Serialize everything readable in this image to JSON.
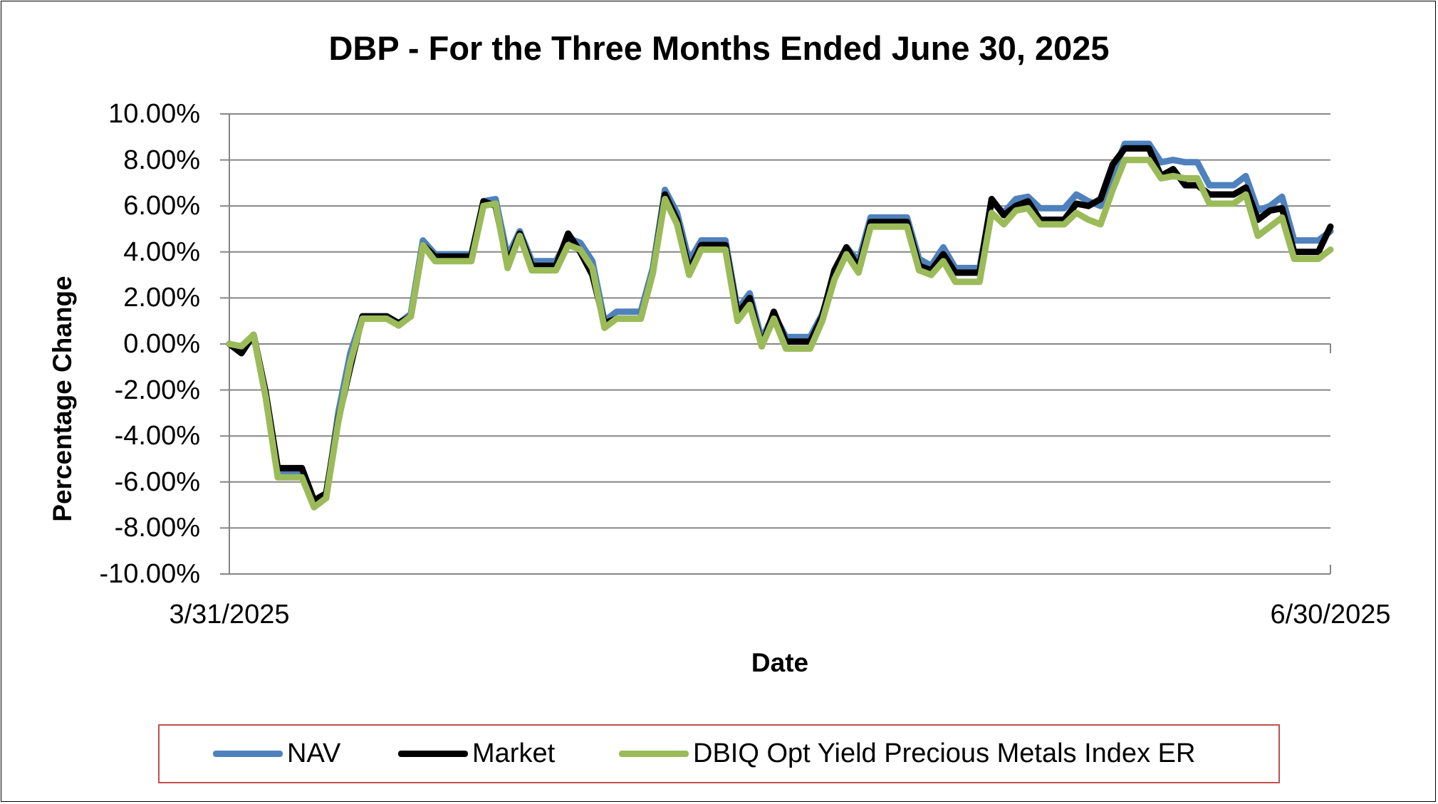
{
  "chart_data": {
    "type": "line",
    "title": "DBP - For the Three Months Ended June 30, 2025",
    "xlabel": "Date",
    "ylabel": "Percentage Change",
    "ylim": [
      -10,
      10
    ],
    "yticks": [
      "10.00%",
      "8.00%",
      "6.00%",
      "4.00%",
      "2.00%",
      "0.00%",
      "-2.00%",
      "-4.00%",
      "-6.00%",
      "-8.00%",
      "-10.00%"
    ],
    "xtick_labels": [
      "3/31/2025",
      "6/30/2025"
    ],
    "x_start": "3/31/2025",
    "x_end": "6/30/2025",
    "grid": true,
    "legend_position": "bottom",
    "series": [
      {
        "name": "NAV",
        "color": "#4f81bd",
        "values": [
          0.0,
          -0.2,
          0.4,
          -2.3,
          -5.6,
          -5.6,
          -5.6,
          -6.9,
          -6.7,
          -3.0,
          -0.4,
          1.2,
          1.2,
          1.2,
          0.9,
          1.3,
          4.5,
          3.9,
          3.9,
          3.9,
          3.9,
          6.2,
          6.3,
          3.8,
          4.9,
          3.6,
          3.6,
          3.6,
          4.6,
          4.4,
          3.6,
          1.0,
          1.4,
          1.4,
          1.4,
          3.3,
          6.7,
          5.7,
          3.6,
          4.5,
          4.5,
          4.5,
          1.5,
          2.2,
          0.2,
          1.3,
          0.3,
          0.3,
          0.3,
          1.3,
          3.0,
          4.2,
          3.6,
          5.5,
          5.5,
          5.5,
          5.5,
          3.7,
          3.4,
          4.2,
          3.3,
          3.3,
          3.3,
          6.2,
          5.7,
          6.3,
          6.4,
          5.9,
          5.9,
          5.9,
          6.5,
          6.2,
          6.0,
          7.3,
          8.7,
          8.7,
          8.7,
          7.9,
          8.0,
          7.9,
          7.9,
          6.9,
          6.9,
          6.9,
          7.3,
          5.8,
          6.0,
          6.4,
          4.5,
          4.5,
          4.5,
          4.9
        ]
      },
      {
        "name": "Market",
        "color": "#000000",
        "values": [
          0.0,
          -0.4,
          0.4,
          -2.1,
          -5.4,
          -5.4,
          -5.4,
          -6.8,
          -6.5,
          -3.3,
          -1.0,
          1.2,
          1.2,
          1.2,
          0.9,
          1.2,
          4.3,
          3.8,
          3.8,
          3.8,
          3.8,
          6.2,
          6.0,
          3.5,
          4.8,
          3.4,
          3.4,
          3.4,
          4.8,
          4.0,
          3.0,
          0.9,
          1.1,
          1.1,
          1.1,
          3.1,
          6.5,
          5.4,
          3.2,
          4.3,
          4.3,
          4.3,
          1.3,
          2.0,
          -0.1,
          1.4,
          0.1,
          0.1,
          0.1,
          1.2,
          3.2,
          4.2,
          3.3,
          5.3,
          5.3,
          5.3,
          5.3,
          3.4,
          3.2,
          3.9,
          3.1,
          3.1,
          3.1,
          6.3,
          5.6,
          6.0,
          6.2,
          5.4,
          5.4,
          5.4,
          6.1,
          6.0,
          6.3,
          7.8,
          8.5,
          8.5,
          8.5,
          7.3,
          7.6,
          6.9,
          6.9,
          6.5,
          6.5,
          6.5,
          6.8,
          5.4,
          5.8,
          5.9,
          4.0,
          4.0,
          4.0,
          5.1
        ]
      },
      {
        "name": "DBIQ Opt Yield Precious Metals Index ER",
        "color": "#9bbb59",
        "values": [
          0.0,
          -0.1,
          0.4,
          -2.3,
          -5.8,
          -5.8,
          -5.8,
          -7.1,
          -6.7,
          -3.4,
          -0.8,
          1.1,
          1.1,
          1.1,
          0.8,
          1.2,
          4.3,
          3.6,
          3.6,
          3.6,
          3.6,
          6.0,
          6.1,
          3.3,
          4.7,
          3.2,
          3.2,
          3.2,
          4.3,
          4.1,
          3.3,
          0.7,
          1.1,
          1.1,
          1.1,
          3.1,
          6.3,
          5.2,
          3.0,
          4.1,
          4.1,
          4.1,
          1.0,
          1.7,
          -0.1,
          1.1,
          -0.2,
          -0.2,
          -0.2,
          1.0,
          2.8,
          3.9,
          3.1,
          5.1,
          5.1,
          5.1,
          5.1,
          3.2,
          3.0,
          3.6,
          2.7,
          2.7,
          2.7,
          5.7,
          5.2,
          5.8,
          5.9,
          5.2,
          5.2,
          5.2,
          5.7,
          5.4,
          5.2,
          6.7,
          8.0,
          8.0,
          8.0,
          7.2,
          7.3,
          7.2,
          7.2,
          6.1,
          6.1,
          6.1,
          6.5,
          4.7,
          5.1,
          5.5,
          3.7,
          3.7,
          3.7,
          4.1
        ]
      }
    ]
  }
}
